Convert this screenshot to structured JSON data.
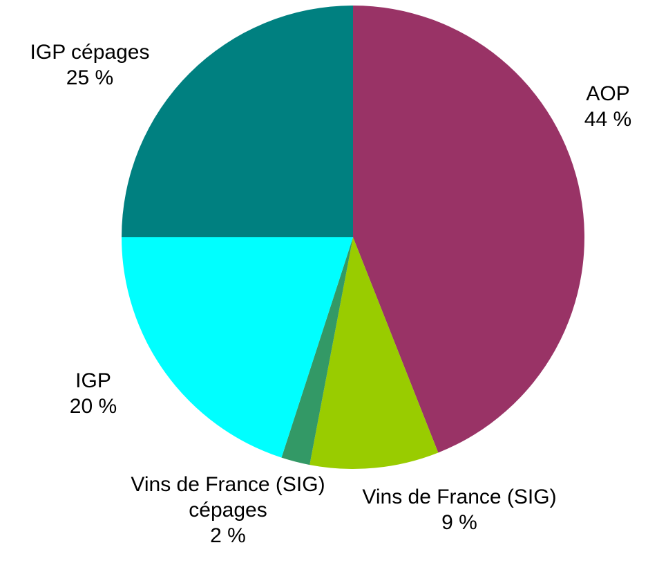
{
  "chart_data": {
    "type": "pie",
    "categories": [
      "AOP",
      "Vins de France (SIG)",
      "Vins de France (SIG) cépages",
      "IGP",
      "IGP cépages"
    ],
    "values": [
      44,
      9,
      2,
      20,
      25
    ],
    "value_labels": [
      "44 %",
      "9 %",
      "2 %",
      "20 %",
      "25 %"
    ],
    "colors": [
      "#993366",
      "#99cc00",
      "#339966",
      "#00ffff",
      "#008080"
    ]
  }
}
